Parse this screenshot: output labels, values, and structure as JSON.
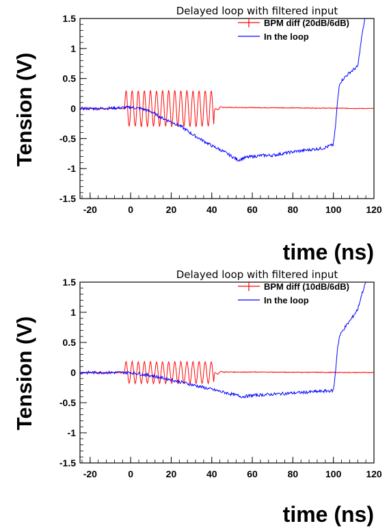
{
  "chart_data": [
    {
      "type": "line",
      "title": "Delayed loop with filtered input",
      "xlabel": "time (ns)",
      "ylabel": "Tension (V)",
      "xlim": [
        -25,
        120
      ],
      "ylim": [
        -1.5,
        1.5
      ],
      "xticks": [
        "-20",
        "0",
        "20",
        "40",
        "60",
        "80",
        "100",
        "120"
      ],
      "yticks": [
        "1.5",
        "1",
        "0.5",
        "0",
        "-0.5",
        "-1",
        "-1.5"
      ],
      "legend": "top-right",
      "series": [
        {
          "name": "BPM diff (20dB/6dB)",
          "color": "#ff0000",
          "shape": "oscillation",
          "x": [
            -25,
            -3,
            -3,
            41,
            41,
            44,
            120
          ],
          "y": [
            0.0,
            0.0,
            0.0,
            0.0,
            -0.05,
            0.02,
            0.0
          ],
          "osc_amp": 0.3,
          "osc_period": 3
        },
        {
          "name": "In the loop",
          "color": "#0000ff",
          "x": [
            -25,
            -15,
            0,
            5,
            10,
            15,
            20,
            25,
            30,
            35,
            40,
            45,
            50,
            53,
            56,
            60,
            65,
            70,
            75,
            80,
            85,
            90,
            95,
            100,
            101,
            102,
            103,
            105,
            108,
            110,
            112,
            114,
            116
          ],
          "y": [
            0.0,
            0.0,
            0.02,
            0.0,
            -0.05,
            -0.15,
            -0.22,
            -0.3,
            -0.42,
            -0.52,
            -0.62,
            -0.7,
            -0.8,
            -0.86,
            -0.82,
            -0.8,
            -0.78,
            -0.78,
            -0.75,
            -0.72,
            -0.7,
            -0.68,
            -0.66,
            -0.6,
            -0.3,
            0.1,
            0.42,
            0.5,
            0.6,
            0.65,
            0.7,
            1.2,
            1.6
          ]
        }
      ]
    },
    {
      "type": "line",
      "title": "Delayed loop with filtered input",
      "xlabel": "time (ns)",
      "ylabel": "Tension (V)",
      "xlim": [
        -25,
        120
      ],
      "ylim": [
        -1.5,
        1.5
      ],
      "xticks": [
        "-20",
        "0",
        "20",
        "40",
        "60",
        "80",
        "100",
        "120"
      ],
      "yticks": [
        "1.5",
        "1",
        "0.5",
        "0",
        "-0.5",
        "-1",
        "-1.5"
      ],
      "legend": "top-right",
      "series": [
        {
          "name": "BPM diff (10dB/6dB)",
          "color": "#ff0000",
          "shape": "oscillation",
          "x": [
            -25,
            -3,
            -3,
            41,
            41,
            44,
            120
          ],
          "y": [
            0.0,
            0.0,
            0.0,
            0.0,
            -0.04,
            0.01,
            0.0
          ],
          "osc_amp": 0.18,
          "osc_period": 3
        },
        {
          "name": "In the loop",
          "color": "#0000ff",
          "x": [
            -25,
            -15,
            0,
            10,
            20,
            30,
            40,
            50,
            55,
            60,
            70,
            80,
            90,
            100,
            101,
            102,
            103,
            105,
            108,
            110,
            112,
            114,
            116
          ],
          "y": [
            0.0,
            0.0,
            0.0,
            -0.05,
            -0.12,
            -0.2,
            -0.28,
            -0.36,
            -0.4,
            -0.38,
            -0.36,
            -0.34,
            -0.32,
            -0.3,
            0.0,
            0.4,
            0.6,
            0.72,
            0.85,
            0.95,
            1.05,
            1.3,
            1.5
          ]
        }
      ]
    }
  ]
}
